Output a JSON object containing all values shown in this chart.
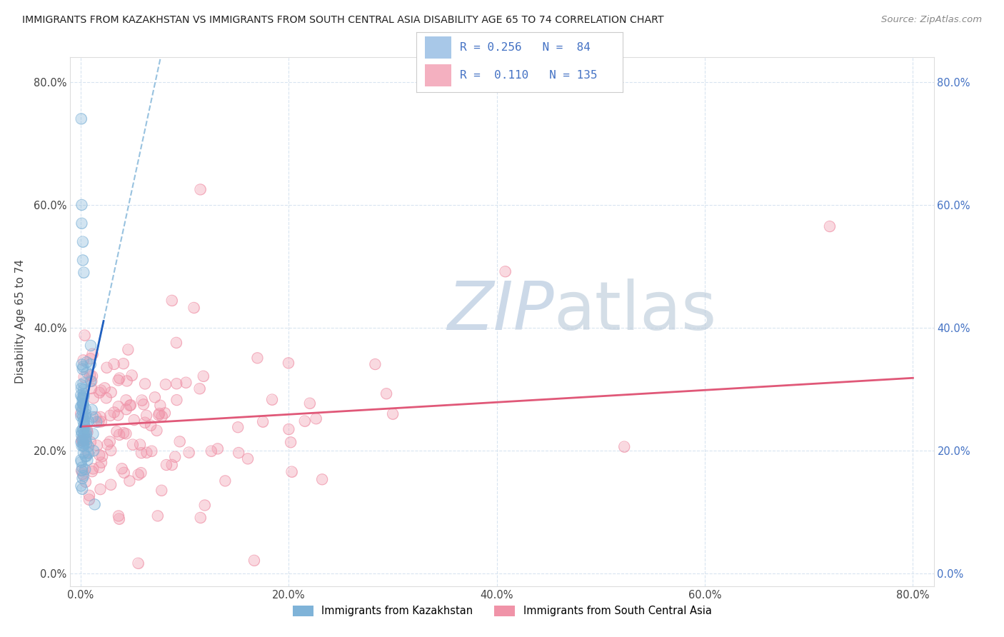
{
  "title": "IMMIGRANTS FROM KAZAKHSTAN VS IMMIGRANTS FROM SOUTH CENTRAL ASIA DISABILITY AGE 65 TO 74 CORRELATION CHART",
  "source": "Source: ZipAtlas.com",
  "ylabel": "Disability Age 65 to 74",
  "R_kaz": 0.256,
  "N_kaz": 84,
  "R_sca": 0.11,
  "N_sca": 135,
  "color_kaz_scatter": "#7fb3d8",
  "color_sca_scatter": "#f093a8",
  "color_kaz_line_solid": "#2060c0",
  "color_kaz_line_dashed": "#7fb3d8",
  "color_sca_line": "#e05878",
  "watermark_color": "#ccd9e8",
  "legend_R_color": "#4472c4",
  "background_color": "#ffffff",
  "grid_color": "#d8e4f0",
  "legend_box_kaz": "#a8c8e8",
  "legend_box_sca": "#f4b0c0",
  "xlim": [
    0.0,
    0.8
  ],
  "ylim": [
    0.0,
    0.8
  ],
  "tick_vals": [
    0.0,
    0.2,
    0.4,
    0.6,
    0.8
  ]
}
